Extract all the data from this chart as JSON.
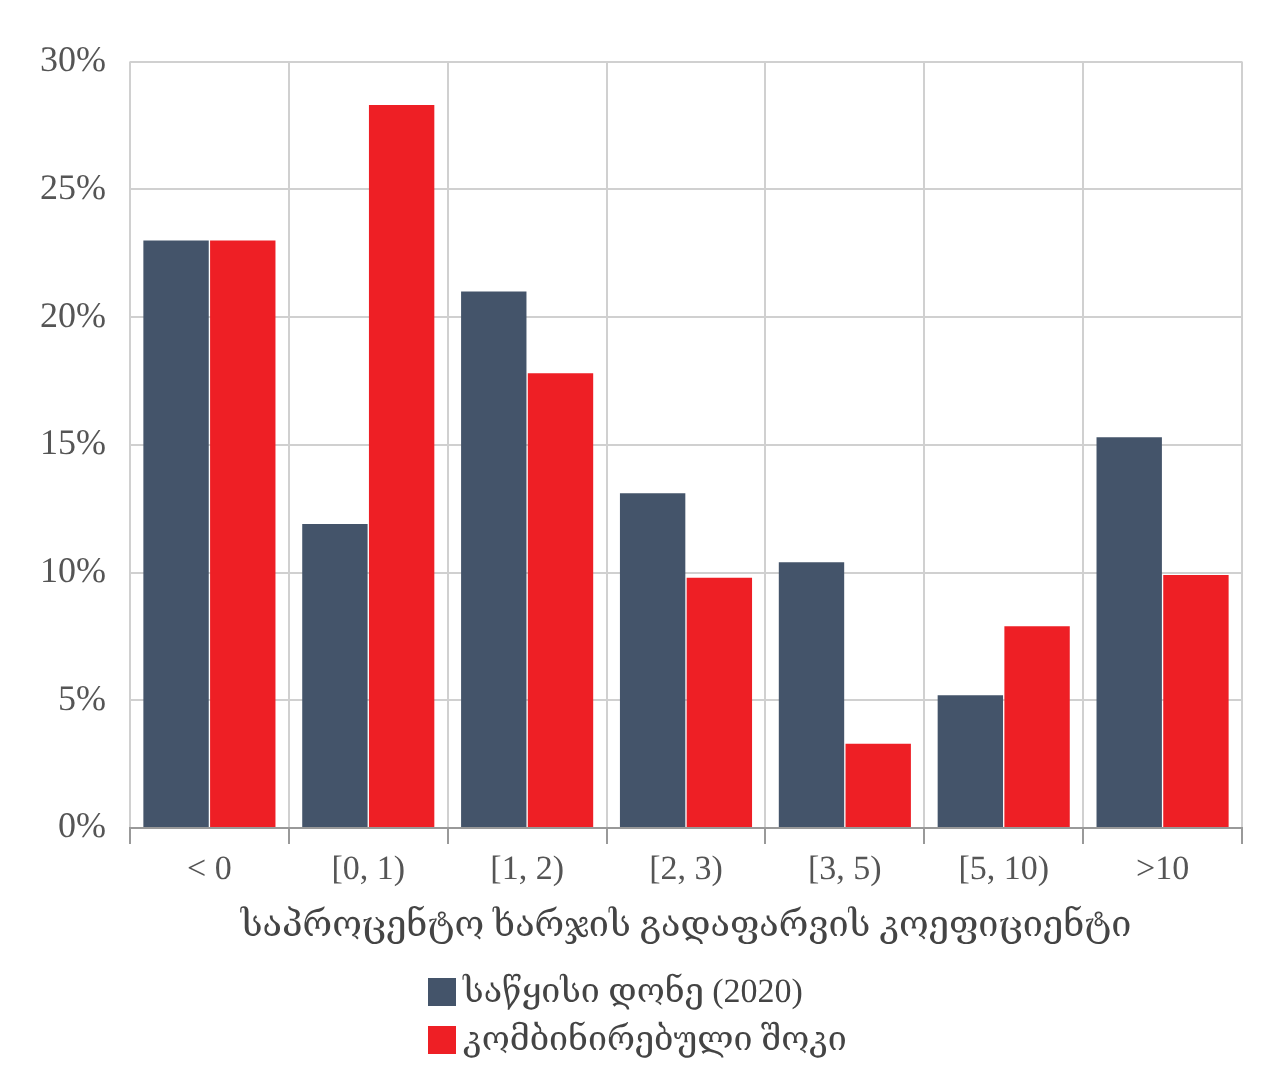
{
  "chart_data": {
    "type": "bar",
    "xlabel": "საპროცენტო ხარჯის გადაფარვის კოეფიციენტი",
    "categories": [
      "< 0",
      "[0, 1)",
      "[1, 2)",
      "[2, 3)",
      "[3, 5)",
      "[5, 10)",
      ">10"
    ],
    "series": [
      {
        "name": "საწყისი დონე (2020)",
        "color": "#44546a",
        "values": [
          23,
          11.9,
          21,
          13.1,
          10.4,
          5.2,
          15.3
        ]
      },
      {
        "name": "კომბინირებული შოკი",
        "color": "#ee1f25",
        "values": [
          23,
          28.3,
          17.8,
          9.8,
          3.3,
          7.9,
          9.9
        ]
      }
    ],
    "ylim": [
      0,
      30
    ],
    "yticks": [
      {
        "value": 0,
        "label": "0%"
      },
      {
        "value": 5,
        "label": "5%"
      },
      {
        "value": 10,
        "label": "10%"
      },
      {
        "value": 15,
        "label": "15%"
      },
      {
        "value": 20,
        "label": "20%"
      },
      {
        "value": 25,
        "label": "25%"
      },
      {
        "value": 30,
        "label": "30%"
      }
    ],
    "grid": true,
    "legend": "bottom"
  }
}
